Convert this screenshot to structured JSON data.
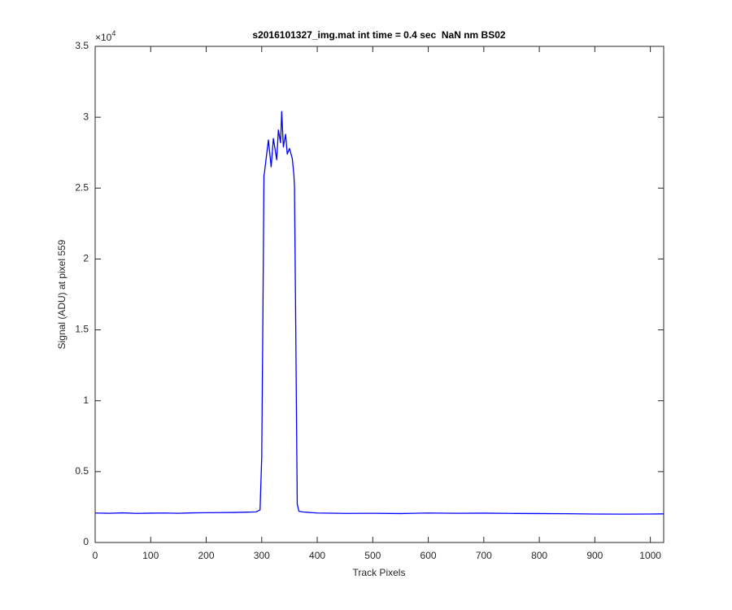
{
  "chart_data": {
    "type": "line",
    "title": "s2016101327_img.mat int time = 0.4 sec  NaN nm BS02",
    "x_label": "Track Pixels",
    "y_label": "Signal (ADU) at pixel 559",
    "y_multiplier": {
      "base": "×10",
      "exponent": "4"
    },
    "xlim": [
      0,
      1024
    ],
    "ylim": [
      0,
      35000
    ],
    "xticks": [
      0,
      100,
      200,
      300,
      400,
      500,
      600,
      700,
      800,
      900,
      1000
    ],
    "yticks": [
      0,
      {
        "value": 5000,
        "label": "0.5"
      },
      {
        "value": 10000,
        "label": "1"
      },
      {
        "value": 15000,
        "label": "1.5"
      },
      {
        "value": 20000,
        "label": "2"
      },
      {
        "value": 25000,
        "label": "2.5"
      },
      {
        "value": 30000,
        "label": "3"
      },
      {
        "value": 35000,
        "label": "3.5"
      }
    ],
    "grid": false,
    "x": [
      0,
      25,
      50,
      75,
      100,
      125,
      150,
      175,
      200,
      225,
      250,
      275,
      290,
      297,
      300,
      302,
      304,
      305,
      308,
      312,
      317,
      321,
      327,
      330,
      334,
      336,
      339,
      343,
      346,
      350,
      355,
      358,
      359,
      361,
      364,
      367,
      375,
      400,
      450,
      500,
      550,
      600,
      650,
      700,
      750,
      800,
      850,
      900,
      950,
      1000,
      1024
    ],
    "series": [
      {
        "color": "#0000ff",
        "values": [
          2080,
          2060,
          2090,
          2050,
          2070,
          2080,
          2060,
          2090,
          2100,
          2110,
          2120,
          2140,
          2160,
          2300,
          6000,
          15300,
          25900,
          26100,
          27100,
          28400,
          26500,
          28500,
          27000,
          29100,
          28200,
          30400,
          27900,
          28800,
          27400,
          27800,
          27100,
          25900,
          25100,
          16500,
          2700,
          2200,
          2150,
          2080,
          2050,
          2060,
          2040,
          2080,
          2060,
          2070,
          2050,
          2040,
          2030,
          2010,
          2000,
          2010,
          2020
        ]
      }
    ]
  }
}
